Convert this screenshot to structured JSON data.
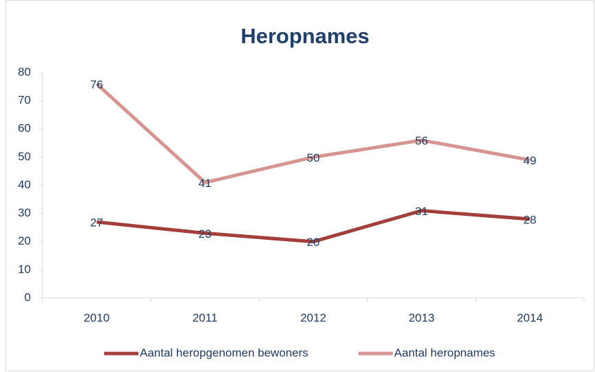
{
  "chart_data": {
    "type": "line",
    "title": "Heropnames",
    "categories": [
      "2010",
      "2011",
      "2012",
      "2013",
      "2014"
    ],
    "series": [
      {
        "name": "Aantal heropgenomen bewoners",
        "color": "#a23f3b",
        "values": [
          27,
          23,
          20,
          31,
          28
        ]
      },
      {
        "name": "Aantal heropnames",
        "color": "#d79592",
        "values": [
          76,
          41,
          50,
          56,
          49
        ]
      }
    ],
    "ylim": [
      0,
      80
    ],
    "yticks": [
      0,
      10,
      20,
      30,
      40,
      50,
      60,
      70,
      80
    ],
    "grid": false,
    "legend": "bottom",
    "data_labels": true
  }
}
